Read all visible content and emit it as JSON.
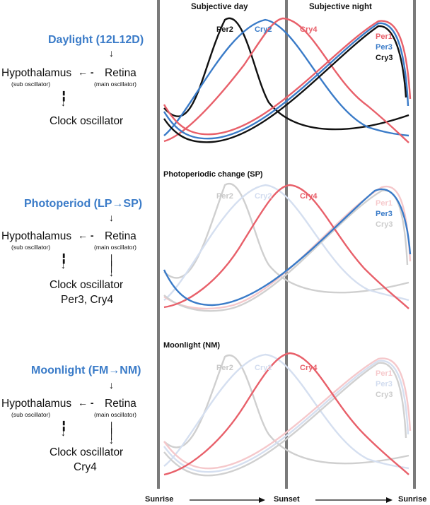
{
  "colors": {
    "blue": "#3a7bc8",
    "red": "#e8606a",
    "black": "#111111",
    "grey": "#777777"
  },
  "columns": {
    "day_header": "Subjective day",
    "night_header": "Subjective night"
  },
  "x_axis": {
    "start": "Sunrise",
    "middle": "Sunset",
    "end": "Sunrise"
  },
  "panels": [
    {
      "title": "Daylight (12L12D)",
      "chart_title": "",
      "hypothalamus": "Hypothalamus",
      "hypothalamus_sub": "(sub oscillator)",
      "retina": "Retina",
      "retina_sub": "(main oscillator)",
      "output_line1": "Clock oscillator",
      "output_line2": "",
      "labels": {
        "per2": "Per2",
        "cry2": "Cry2",
        "cry4": "Cry4",
        "per1": "Per1",
        "per3": "Per3",
        "cry3": "Cry3"
      }
    },
    {
      "title": "Photoperiod (LP→SP)",
      "chart_title": "Photoperiodic change (SP)",
      "hypothalamus": "Hypothalamus",
      "hypothalamus_sub": "(sub oscillator)",
      "retina": "Retina",
      "retina_sub": "(main oscillator)",
      "output_line1": "Clock oscillator",
      "output_line2": "Per3, Cry4",
      "labels": {
        "per2": "Per2",
        "cry2": "Cry2",
        "cry4": "Cry4",
        "per1": "Per1",
        "per3": "Per3",
        "cry3": "Cry3"
      }
    },
    {
      "title": "Moonlight (FM→NM)",
      "chart_title": "Moonlight (NM)",
      "hypothalamus": "Hypothalamus",
      "hypothalamus_sub": "(sub oscillator)",
      "retina": "Retina",
      "retina_sub": "(main oscillator)",
      "output_line1": "Clock oscillator",
      "output_line2": "Cry4",
      "labels": {
        "per2": "Per2",
        "cry2": "Cry2",
        "cry4": "Cry4",
        "per1": "Per1",
        "per3": "Per3",
        "cry3": "Cry3"
      }
    }
  ]
}
